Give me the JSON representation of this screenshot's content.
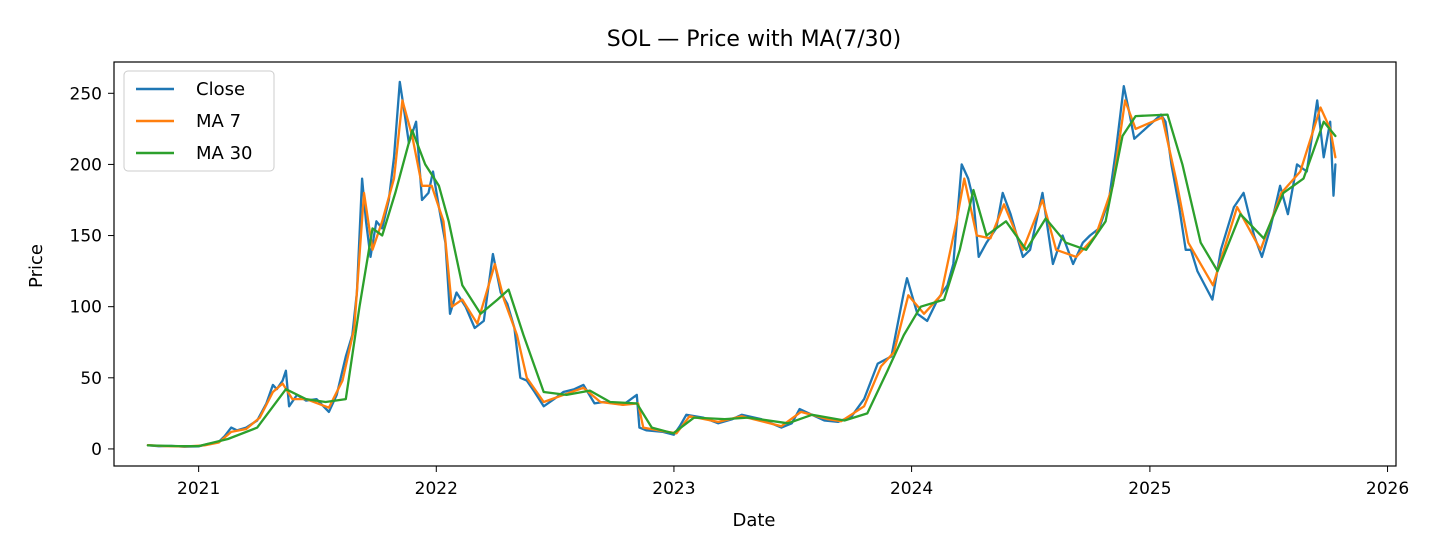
{
  "chart_data": {
    "type": "line",
    "title": "SOL — Price with MA(7/30)",
    "xlabel": "Date",
    "ylabel": "Price",
    "x_ticks": [
      "2021",
      "2022",
      "2023",
      "2024",
      "2025",
      "2026"
    ],
    "y_ticks": [
      0,
      50,
      100,
      150,
      200,
      250
    ],
    "xlim": [
      "2020-08-24",
      "2026-01-14"
    ],
    "ylim": [
      -12,
      272
    ],
    "grid": false,
    "legend_position": "upper-left",
    "series": [
      {
        "name": "Close",
        "color": "#1f77b4",
        "points": [
          [
            "2020-10-15",
            2.6
          ],
          [
            "2020-11-01",
            1.9
          ],
          [
            "2020-11-20",
            2.1
          ],
          [
            "2020-12-10",
            1.6
          ],
          [
            "2021-01-01",
            1.8
          ],
          [
            "2021-01-15",
            3.5
          ],
          [
            "2021-02-01",
            5.0
          ],
          [
            "2021-02-10",
            9.0
          ],
          [
            "2021-02-20",
            15.0
          ],
          [
            "2021-03-01",
            13.0
          ],
          [
            "2021-03-15",
            15.0
          ],
          [
            "2021-04-01",
            20.0
          ],
          [
            "2021-04-15",
            32.0
          ],
          [
            "2021-04-25",
            45.0
          ],
          [
            "2021-05-01",
            42.0
          ],
          [
            "2021-05-10",
            48.0
          ],
          [
            "2021-05-15",
            55.0
          ],
          [
            "2021-05-20",
            30.0
          ],
          [
            "2021-06-01",
            38.0
          ],
          [
            "2021-06-15",
            34.0
          ],
          [
            "2021-07-01",
            35.0
          ],
          [
            "2021-07-20",
            26.0
          ],
          [
            "2021-08-01",
            38.0
          ],
          [
            "2021-08-15",
            65.0
          ],
          [
            "2021-08-25",
            80.0
          ],
          [
            "2021-09-01",
            110.0
          ],
          [
            "2021-09-09",
            190.0
          ],
          [
            "2021-09-15",
            160.0
          ],
          [
            "2021-09-22",
            135.0
          ],
          [
            "2021-10-01",
            160.0
          ],
          [
            "2021-10-10",
            155.0
          ],
          [
            "2021-10-20",
            175.0
          ],
          [
            "2021-10-28",
            205.0
          ],
          [
            "2021-11-06",
            258.0
          ],
          [
            "2021-11-12",
            240.0
          ],
          [
            "2021-11-20",
            215.0
          ],
          [
            "2021-12-01",
            230.0
          ],
          [
            "2021-12-10",
            175.0
          ],
          [
            "2021-12-20",
            180.0
          ],
          [
            "2021-12-27",
            195.0
          ],
          [
            "2022-01-05",
            170.0
          ],
          [
            "2022-01-15",
            145.0
          ],
          [
            "2022-01-22",
            95.0
          ],
          [
            "2022-02-01",
            110.0
          ],
          [
            "2022-02-15",
            100.0
          ],
          [
            "2022-03-01",
            85.0
          ],
          [
            "2022-03-15",
            90.0
          ],
          [
            "2022-03-29",
            137.0
          ],
          [
            "2022-04-10",
            110.0
          ],
          [
            "2022-04-20",
            102.0
          ],
          [
            "2022-05-01",
            85.0
          ],
          [
            "2022-05-10",
            50.0
          ],
          [
            "2022-05-20",
            48.0
          ],
          [
            "2022-06-01",
            40.0
          ],
          [
            "2022-06-15",
            30.0
          ],
          [
            "2022-07-01",
            35.0
          ],
          [
            "2022-07-15",
            40.0
          ],
          [
            "2022-08-01",
            42.0
          ],
          [
            "2022-08-15",
            45.0
          ],
          [
            "2022-09-01",
            32.0
          ],
          [
            "2022-09-15",
            33.0
          ],
          [
            "2022-10-01",
            32.0
          ],
          [
            "2022-10-15",
            31.0
          ],
          [
            "2022-11-05",
            38.0
          ],
          [
            "2022-11-09",
            15.0
          ],
          [
            "2022-11-20",
            13.0
          ],
          [
            "2022-12-15",
            12.0
          ],
          [
            "2023-01-01",
            10.0
          ],
          [
            "2023-01-10",
            16.0
          ],
          [
            "2023-01-20",
            24.0
          ],
          [
            "2023-02-15",
            22.0
          ],
          [
            "2023-03-10",
            18.0
          ],
          [
            "2023-04-01",
            21.0
          ],
          [
            "2023-04-15",
            24.0
          ],
          [
            "2023-05-15",
            21.0
          ],
          [
            "2023-06-15",
            15.0
          ],
          [
            "2023-07-01",
            18.0
          ],
          [
            "2023-07-13",
            28.0
          ],
          [
            "2023-08-01",
            24.0
          ],
          [
            "2023-08-20",
            20.0
          ],
          [
            "2023-09-10",
            19.0
          ],
          [
            "2023-10-01",
            23.0
          ],
          [
            "2023-10-20",
            35.0
          ],
          [
            "2023-11-10",
            60.0
          ],
          [
            "2023-12-01",
            65.0
          ],
          [
            "2023-12-20",
            110.0
          ],
          [
            "2023-12-25",
            120.0
          ],
          [
            "2024-01-10",
            95.0
          ],
          [
            "2024-01-25",
            90.0
          ],
          [
            "2024-02-10",
            105.0
          ],
          [
            "2024-02-25",
            115.0
          ],
          [
            "2024-03-05",
            130.0
          ],
          [
            "2024-03-18",
            200.0
          ],
          [
            "2024-03-28",
            190.0
          ],
          [
            "2024-04-05",
            175.0
          ],
          [
            "2024-04-13",
            135.0
          ],
          [
            "2024-04-25",
            145.0
          ],
          [
            "2024-05-10",
            155.0
          ],
          [
            "2024-05-20",
            180.0
          ],
          [
            "2024-06-01",
            165.0
          ],
          [
            "2024-06-20",
            135.0
          ],
          [
            "2024-07-01",
            140.0
          ],
          [
            "2024-07-20",
            180.0
          ],
          [
            "2024-08-05",
            130.0
          ],
          [
            "2024-08-20",
            150.0
          ],
          [
            "2024-09-05",
            130.0
          ],
          [
            "2024-09-20",
            145.0
          ],
          [
            "2024-10-01",
            150.0
          ],
          [
            "2024-10-15",
            155.0
          ],
          [
            "2024-10-30",
            175.0
          ],
          [
            "2024-11-10",
            210.0
          ],
          [
            "2024-11-22",
            255.0
          ],
          [
            "2024-12-01",
            235.0
          ],
          [
            "2024-12-08",
            218.0
          ],
          [
            "2025-01-18",
            235.0
          ],
          [
            "2025-01-25",
            230.0
          ],
          [
            "2025-02-03",
            200.0
          ],
          [
            "2025-02-15",
            170.0
          ],
          [
            "2025-02-25",
            140.0
          ],
          [
            "2025-03-05",
            140.0
          ],
          [
            "2025-03-15",
            125.0
          ],
          [
            "2025-04-07",
            105.0
          ],
          [
            "2025-04-20",
            140.0
          ],
          [
            "2025-05-10",
            170.0
          ],
          [
            "2025-05-25",
            180.0
          ],
          [
            "2025-06-10",
            150.0
          ],
          [
            "2025-06-22",
            135.0
          ],
          [
            "2025-07-05",
            155.0
          ],
          [
            "2025-07-20",
            185.0
          ],
          [
            "2025-08-01",
            165.0
          ],
          [
            "2025-08-15",
            200.0
          ],
          [
            "2025-08-30",
            195.0
          ],
          [
            "2025-09-15",
            245.0
          ],
          [
            "2025-09-25",
            205.0
          ],
          [
            "2025-10-05",
            230.0
          ],
          [
            "2025-10-10",
            178.0
          ],
          [
            "2025-10-13",
            200.0
          ]
        ]
      },
      {
        "name": "MA 7",
        "color": "#ff7f0e",
        "points": [
          [
            "2020-10-15",
            2.6
          ],
          [
            "2020-11-10",
            2.0
          ],
          [
            "2020-12-10",
            1.7
          ],
          [
            "2021-01-10",
            2.5
          ],
          [
            "2021-02-01",
            4.5
          ],
          [
            "2021-02-20",
            12.0
          ],
          [
            "2021-03-15",
            14.0
          ],
          [
            "2021-04-05",
            22.0
          ],
          [
            "2021-04-25",
            40.0
          ],
          [
            "2021-05-10",
            46.0
          ],
          [
            "2021-05-25",
            35.0
          ],
          [
            "2021-06-15",
            35.0
          ],
          [
            "2021-07-20",
            29.0
          ],
          [
            "2021-08-10",
            48.0
          ],
          [
            "2021-08-28",
            85.0
          ],
          [
            "2021-09-12",
            180.0
          ],
          [
            "2021-09-25",
            140.0
          ],
          [
            "2021-10-10",
            160.0
          ],
          [
            "2021-10-28",
            190.0
          ],
          [
            "2021-11-10",
            245.0
          ],
          [
            "2021-11-25",
            220.0
          ],
          [
            "2021-12-10",
            185.0
          ],
          [
            "2021-12-25",
            185.0
          ],
          [
            "2022-01-12",
            160.0
          ],
          [
            "2022-01-25",
            100.0
          ],
          [
            "2022-02-10",
            105.0
          ],
          [
            "2022-03-05",
            88.0
          ],
          [
            "2022-04-01",
            130.0
          ],
          [
            "2022-04-15",
            105.0
          ],
          [
            "2022-05-05",
            80.0
          ],
          [
            "2022-05-20",
            50.0
          ],
          [
            "2022-06-15",
            33.0
          ],
          [
            "2022-07-15",
            38.0
          ],
          [
            "2022-08-15",
            43.0
          ],
          [
            "2022-09-10",
            33.0
          ],
          [
            "2022-10-15",
            31.0
          ],
          [
            "2022-11-07",
            32.0
          ],
          [
            "2022-11-15",
            15.0
          ],
          [
            "2022-12-15",
            12.5
          ],
          [
            "2023-01-05",
            11.0
          ],
          [
            "2023-01-25",
            23.0
          ],
          [
            "2023-03-10",
            19.0
          ],
          [
            "2023-04-15",
            23.0
          ],
          [
            "2023-06-15",
            16.0
          ],
          [
            "2023-07-15",
            26.0
          ],
          [
            "2023-08-25",
            21.0
          ],
          [
            "2023-09-15",
            19.5
          ],
          [
            "2023-10-20",
            30.0
          ],
          [
            "2023-11-15",
            58.0
          ],
          [
            "2023-12-05",
            68.0
          ],
          [
            "2023-12-27",
            108.0
          ],
          [
            "2024-01-20",
            95.0
          ],
          [
            "2024-02-15",
            108.0
          ],
          [
            "2024-03-10",
            160.0
          ],
          [
            "2024-03-22",
            190.0
          ],
          [
            "2024-04-10",
            150.0
          ],
          [
            "2024-05-01",
            148.0
          ],
          [
            "2024-05-22",
            172.0
          ],
          [
            "2024-06-20",
            140.0
          ],
          [
            "2024-07-20",
            175.0
          ],
          [
            "2024-08-10",
            140.0
          ],
          [
            "2024-09-10",
            135.0
          ],
          [
            "2024-10-10",
            150.0
          ],
          [
            "2024-11-05",
            185.0
          ],
          [
            "2024-11-24",
            245.0
          ],
          [
            "2024-12-10",
            225.0
          ],
          [
            "2025-01-20",
            233.0
          ],
          [
            "2025-02-10",
            190.0
          ],
          [
            "2025-03-01",
            145.0
          ],
          [
            "2025-04-08",
            115.0
          ],
          [
            "2025-05-15",
            170.0
          ],
          [
            "2025-06-20",
            140.0
          ],
          [
            "2025-07-22",
            180.0
          ],
          [
            "2025-08-20",
            195.0
          ],
          [
            "2025-09-20",
            240.0
          ],
          [
            "2025-10-05",
            225.0
          ],
          [
            "2025-10-13",
            205.0
          ]
        ]
      },
      {
        "name": "MA 30",
        "color": "#2ca02c",
        "points": [
          [
            "2020-10-15",
            2.5
          ],
          [
            "2020-12-01",
            2.0
          ],
          [
            "2021-01-01",
            2.0
          ],
          [
            "2021-02-15",
            7.0
          ],
          [
            "2021-04-01",
            15.0
          ],
          [
            "2021-05-15",
            42.0
          ],
          [
            "2021-06-15",
            35.0
          ],
          [
            "2021-07-15",
            33.0
          ],
          [
            "2021-08-15",
            35.0
          ],
          [
            "2021-09-05",
            100.0
          ],
          [
            "2021-09-25",
            155.0
          ],
          [
            "2021-10-10",
            150.0
          ],
          [
            "2021-10-30",
            180.0
          ],
          [
            "2021-11-25",
            224.0
          ],
          [
            "2021-12-15",
            200.0
          ],
          [
            "2022-01-05",
            185.0
          ],
          [
            "2022-01-20",
            160.0
          ],
          [
            "2022-02-10",
            115.0
          ],
          [
            "2022-03-10",
            95.0
          ],
          [
            "2022-04-05",
            105.0
          ],
          [
            "2022-04-22",
            112.0
          ],
          [
            "2022-05-15",
            80.0
          ],
          [
            "2022-06-15",
            40.0
          ],
          [
            "2022-07-20",
            38.0
          ],
          [
            "2022-08-25",
            41.0
          ],
          [
            "2022-09-25",
            33.0
          ],
          [
            "2022-11-05",
            32.0
          ],
          [
            "2022-11-28",
            15.0
          ],
          [
            "2022-12-31",
            11.0
          ],
          [
            "2023-02-01",
            22.0
          ],
          [
            "2023-03-20",
            21.0
          ],
          [
            "2023-04-25",
            22.0
          ],
          [
            "2023-06-25",
            18.0
          ],
          [
            "2023-08-01",
            24.0
          ],
          [
            "2023-09-20",
            20.0
          ],
          [
            "2023-10-25",
            25.0
          ],
          [
            "2023-11-25",
            55.0
          ],
          [
            "2023-12-20",
            80.0
          ],
          [
            "2024-01-15",
            100.0
          ],
          [
            "2024-02-20",
            105.0
          ],
          [
            "2024-03-15",
            140.0
          ],
          [
            "2024-04-05",
            182.0
          ],
          [
            "2024-04-25",
            150.0
          ],
          [
            "2024-05-25",
            160.0
          ],
          [
            "2024-06-25",
            140.0
          ],
          [
            "2024-07-25",
            162.0
          ],
          [
            "2024-08-25",
            145.0
          ],
          [
            "2024-09-25",
            140.0
          ],
          [
            "2024-10-25",
            160.0
          ],
          [
            "2024-11-20",
            220.0
          ],
          [
            "2024-12-10",
            234.0
          ],
          [
            "2025-01-28",
            235.0
          ],
          [
            "2025-02-20",
            200.0
          ],
          [
            "2025-03-20",
            145.0
          ],
          [
            "2025-04-15",
            125.0
          ],
          [
            "2025-05-20",
            165.0
          ],
          [
            "2025-06-25",
            148.0
          ],
          [
            "2025-07-25",
            180.0
          ],
          [
            "2025-08-25",
            190.0
          ],
          [
            "2025-09-25",
            230.0
          ],
          [
            "2025-10-13",
            220.0
          ]
        ]
      }
    ]
  }
}
